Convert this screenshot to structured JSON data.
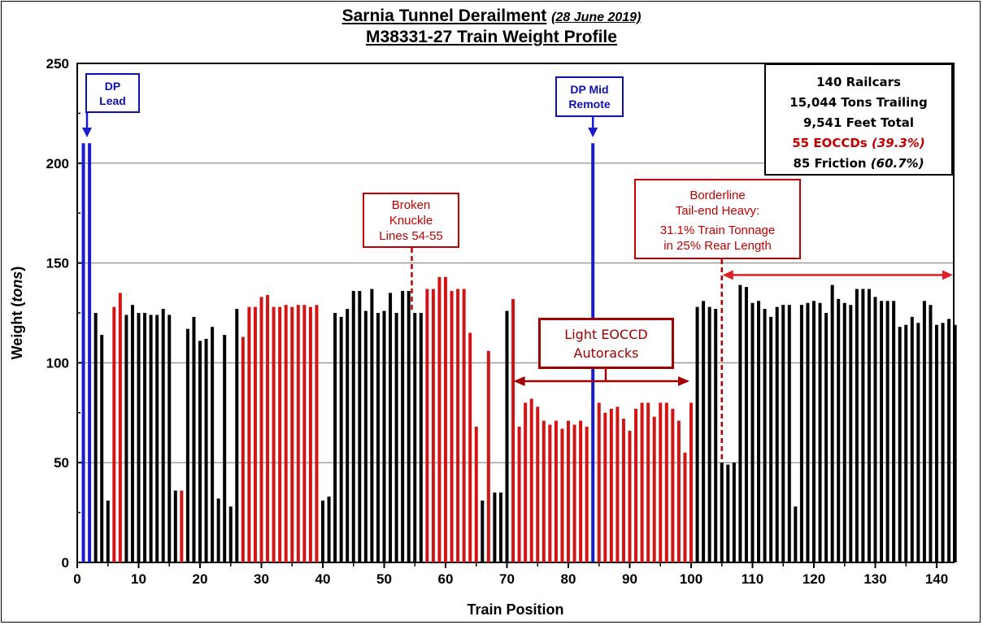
{
  "chart_data": {
    "type": "bar",
    "title": "Sarnia Tunnel Derailment",
    "title_date": "(28 June 2019)",
    "subtitle": "M38331-27 Train Weight Profile",
    "xlabel": "Train Position",
    "ylabel_prefix": "Weight (",
    "ylabel_unit": "tons",
    "ylabel_suffix": ")",
    "xlim": [
      0,
      143
    ],
    "ylim": [
      0,
      250
    ],
    "xticks": [
      0,
      10,
      20,
      30,
      40,
      50,
      60,
      70,
      80,
      90,
      100,
      110,
      120,
      130,
      140
    ],
    "yticks": [
      0,
      50,
      100,
      150,
      200,
      250
    ],
    "grid": "horizontal",
    "colors": {
      "locomotive": "#1a1ad0",
      "eoccd": "#d41414",
      "friction": "#000000",
      "annotation_red": "#c00000"
    },
    "categories_legend": {
      "L": "DP locomotive",
      "E": "EOCCD car",
      "F": "Friction car"
    },
    "values": [
      210,
      210,
      125,
      114,
      31,
      128,
      135,
      124,
      129,
      125,
      125,
      124,
      124,
      127,
      124,
      36,
      36,
      117,
      123,
      111,
      112,
      118,
      32,
      114,
      28,
      127,
      113,
      128,
      128,
      133,
      134,
      128,
      128,
      129,
      128,
      129,
      129,
      128,
      129,
      31,
      33,
      125,
      123,
      127,
      136,
      136,
      126,
      137,
      125,
      126,
      135,
      125,
      136,
      136,
      125,
      125,
      137,
      137,
      143,
      143,
      136,
      137,
      137,
      115,
      68,
      31,
      106,
      35,
      35,
      126,
      132,
      68,
      80,
      82,
      78,
      71,
      69,
      71,
      67,
      71,
      69,
      71,
      68,
      210,
      80,
      75,
      77,
      78,
      72,
      66,
      77,
      80,
      80,
      73,
      80,
      80,
      77,
      71,
      55,
      80,
      128,
      131,
      128,
      127,
      50,
      49,
      50,
      139,
      138,
      130,
      131,
      127,
      123,
      128,
      129,
      129,
      28,
      129,
      130,
      131,
      130,
      125,
      139,
      132,
      130,
      129,
      137,
      137,
      137,
      133,
      131,
      131,
      131,
      118,
      119,
      123,
      120,
      131,
      129,
      119,
      120,
      122,
      119
    ],
    "types": "LLFFFEEFFFFFFFFFEFFFFFFFFFEEEEEEEEEEEEEFFFFFFFFFFFFFFFFFEEEEEEEEEFEFFFEEEEEEEEEEEEELEEEEEEEEEEEEEEEEFFFFFFFFFFFFFFFFFFFFFFFFFFFFFFFFFFFFFFFFFFF",
    "annotations": {
      "dp_lead": {
        "line1": "DP",
        "line2": "Lead",
        "position": 1
      },
      "dp_mid": {
        "line1": "DP Mid",
        "line2": "Remote",
        "position": 84
      },
      "broken_knuckle": {
        "line1": "Broken",
        "line2": "Knuckle",
        "line3": "Lines 54-55",
        "position": 54.5,
        "value": 150
      },
      "tail_end": {
        "line1": "Borderline",
        "line2": "Tail-end Heavy:",
        "line3": "31.1% Train Tonnage",
        "line4": "in 25% Rear Length",
        "position": 105,
        "span": [
          105,
          143
        ],
        "value": 144
      },
      "autoracks": {
        "line1": "Light EOCCD",
        "line2": "Autoracks",
        "span": [
          72,
          100
        ],
        "value": 92
      }
    },
    "stats": {
      "railcars": "140 Railcars",
      "tons": "15,044 Tons Trailing",
      "feet": "9,541 Feet Total",
      "eoccd": "55 EOCCDs",
      "eoccd_pct": "(39.3%)",
      "friction": "85 Friction",
      "friction_pct": "(60.7%)"
    }
  }
}
